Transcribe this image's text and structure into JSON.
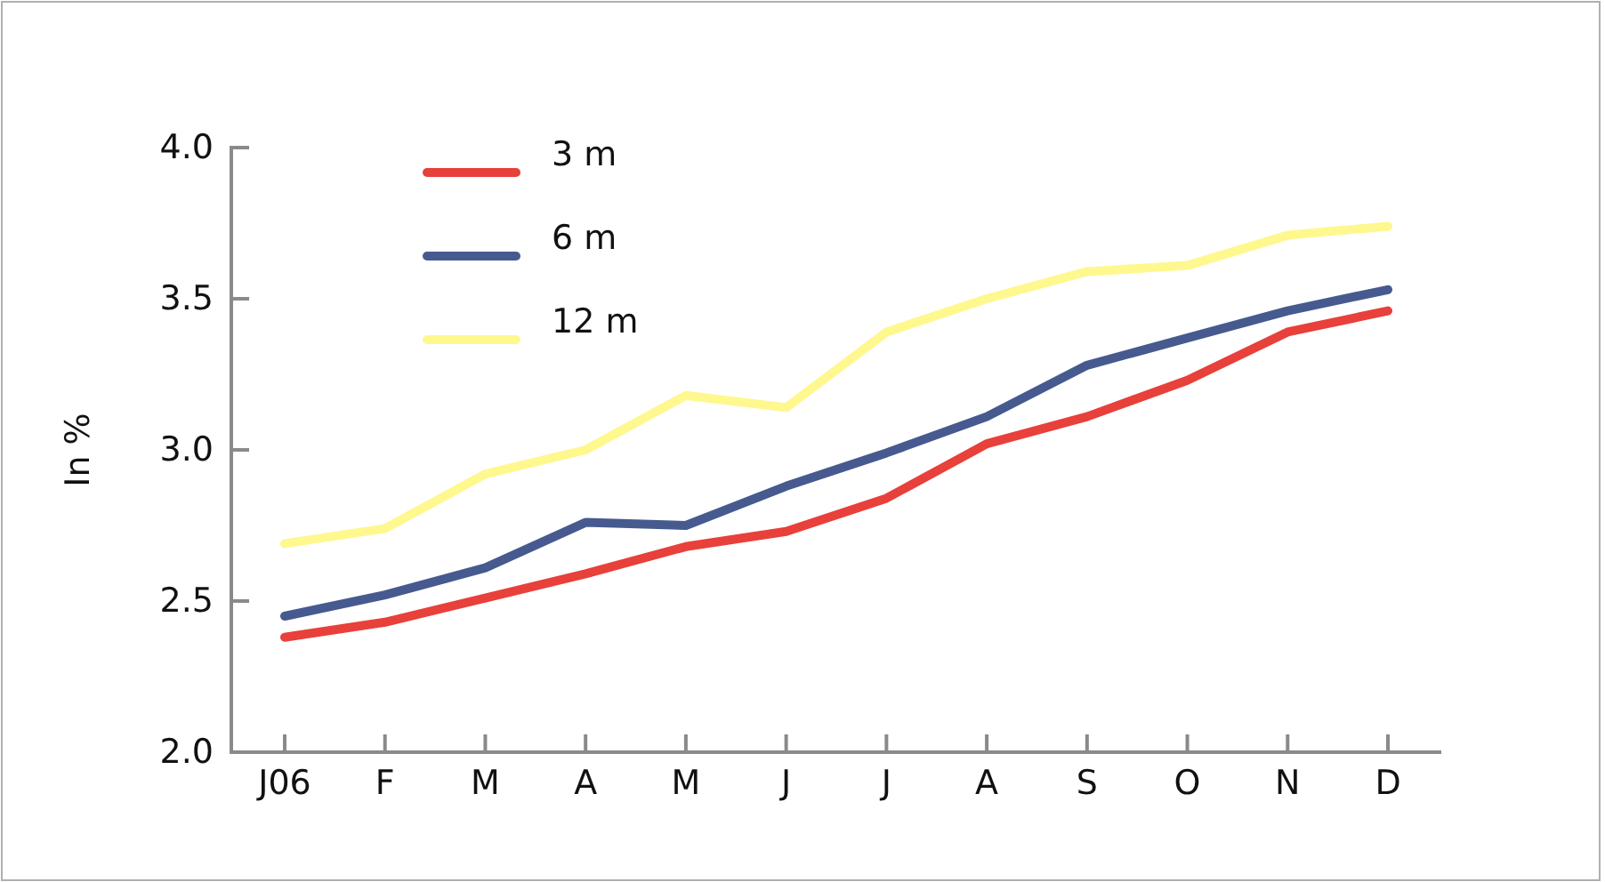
{
  "chart_data": {
    "type": "line",
    "ylabel": "In %",
    "categories": [
      "J06",
      "F",
      "M",
      "A",
      "M",
      "J",
      "J",
      "A",
      "S",
      "O",
      "N",
      "D"
    ],
    "series": [
      {
        "name": "3 m",
        "color": "#e8403a",
        "values": [
          2.38,
          2.43,
          2.51,
          2.59,
          2.68,
          2.73,
          2.84,
          3.02,
          3.11,
          3.23,
          3.39,
          3.46
        ]
      },
      {
        "name": "6 m",
        "color": "#465a8f",
        "values": [
          2.45,
          2.52,
          2.61,
          2.76,
          2.75,
          2.88,
          2.99,
          3.11,
          3.28,
          3.37,
          3.46,
          3.53
        ]
      },
      {
        "name": "12 m",
        "color": "#fef88f",
        "values": [
          2.69,
          2.74,
          2.92,
          3.0,
          3.18,
          3.14,
          3.39,
          3.5,
          3.59,
          3.61,
          3.71,
          3.74
        ]
      }
    ],
    "ylim": [
      2.0,
      4.0
    ],
    "yticks": [
      {
        "value": 2,
        "label": "2.0"
      },
      {
        "value": 2.5,
        "label": "2.5"
      },
      {
        "value": 3,
        "label": "3.0"
      },
      {
        "value": 3.5,
        "label": "3.5"
      },
      {
        "value": 4,
        "label": "4.0"
      }
    ],
    "grid": false,
    "legend": "top left",
    "marker": "none",
    "line_style": "solid"
  }
}
